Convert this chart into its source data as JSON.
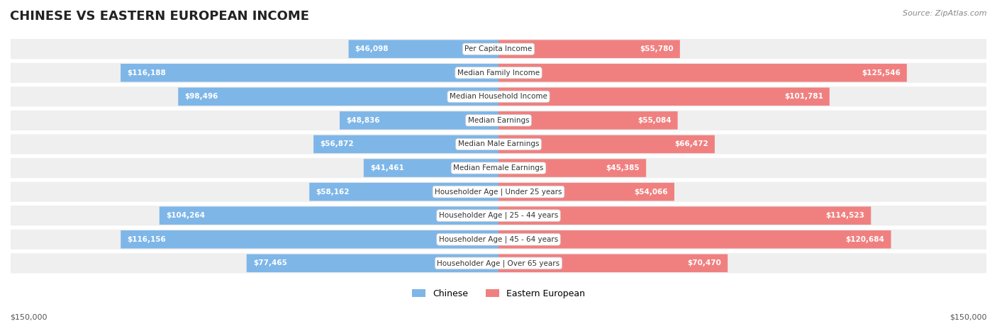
{
  "title": "CHINESE VS EASTERN EUROPEAN INCOME",
  "source": "Source: ZipAtlas.com",
  "categories": [
    "Per Capita Income",
    "Median Family Income",
    "Median Household Income",
    "Median Earnings",
    "Median Male Earnings",
    "Median Female Earnings",
    "Householder Age | Under 25 years",
    "Householder Age | 25 - 44 years",
    "Householder Age | 45 - 64 years",
    "Householder Age | Over 65 years"
  ],
  "chinese_values": [
    46098,
    116188,
    98496,
    48836,
    56872,
    41461,
    58162,
    104264,
    116156,
    77465
  ],
  "eastern_values": [
    55780,
    125546,
    101781,
    55084,
    66472,
    45385,
    54066,
    114523,
    120684,
    70470
  ],
  "chinese_labels": [
    "$46,098",
    "$116,188",
    "$98,496",
    "$48,836",
    "$56,872",
    "$41,461",
    "$58,162",
    "$104,264",
    "$116,156",
    "$77,465"
  ],
  "eastern_labels": [
    "$55,780",
    "$125,546",
    "$101,781",
    "$55,084",
    "$66,472",
    "$45,385",
    "$54,066",
    "$114,523",
    "$120,684",
    "$70,470"
  ],
  "chinese_color": "#7EB6E8",
  "eastern_color": "#F08080",
  "chinese_label_color_inner": "#FFFFFF",
  "chinese_label_color_outer": "#555555",
  "eastern_label_color_inner": "#FFFFFF",
  "eastern_label_color_outer": "#555555",
  "max_value": 150000,
  "background_color": "#FFFFFF",
  "row_bg_color": "#F0F0F0",
  "legend_chinese": "Chinese",
  "legend_eastern": "Eastern European",
  "bottom_left_label": "$150,000",
  "bottom_right_label": "$150,000"
}
